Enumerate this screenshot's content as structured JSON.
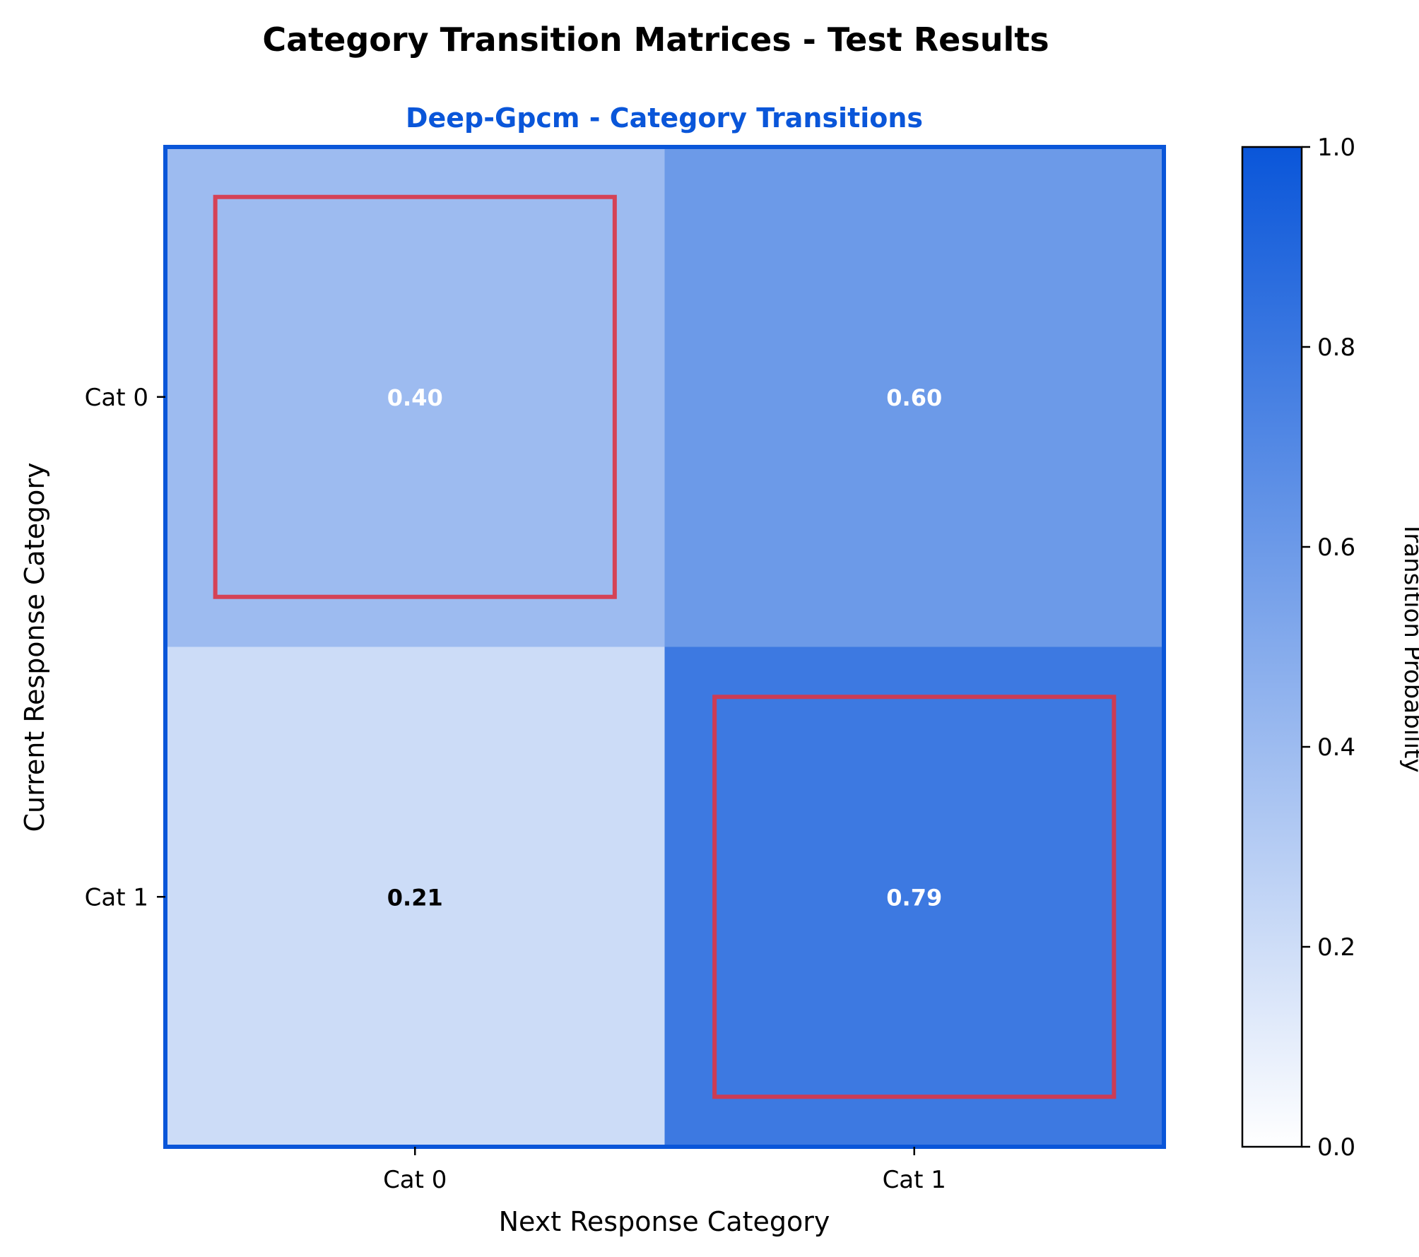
{
  "figure": {
    "suptitle": "Category Transition Matrices - Test Results"
  },
  "colors": {
    "title_accent": "#0a56d9",
    "frame": "#0a56d9",
    "highlight": "#dc3545",
    "colormap_low": "#ffffff",
    "colormap_high": "#0a56d9",
    "text_dark": "#000000",
    "text_light": "#ffffff"
  },
  "chart_data": {
    "type": "heatmap",
    "title": "Deep-Gpcm - Category Transitions",
    "xlabel": "Next Response Category",
    "ylabel": "Current Response Category",
    "x_categories": [
      "Cat 0",
      "Cat 1"
    ],
    "y_categories": [
      "Cat 0",
      "Cat 1"
    ],
    "values": [
      [
        0.4,
        0.6
      ],
      [
        0.21,
        0.79
      ]
    ],
    "cell_labels": [
      [
        "0.40",
        "0.60"
      ],
      [
        "0.21",
        "0.79"
      ]
    ],
    "highlighted_cells": "diagonal",
    "colorbar": {
      "label": "Transition Probability",
      "range": [
        0,
        1
      ],
      "ticks": [
        "0.0",
        "0.2",
        "0.4",
        "0.6",
        "0.8",
        "1.0"
      ]
    }
  }
}
